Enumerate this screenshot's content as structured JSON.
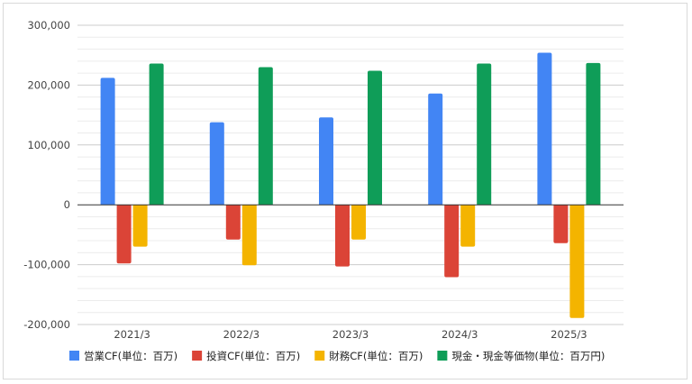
{
  "chart_data": {
    "type": "bar",
    "title": "",
    "xlabel": "",
    "ylabel": "",
    "categories": [
      "2021/3",
      "2022/3",
      "2023/3",
      "2024/3",
      "2025/3"
    ],
    "ylim": [
      -200000,
      300000
    ],
    "y_ticks": [
      "300,000",
      "200,000",
      "100,000",
      "0",
      "-100,000",
      "-200,000"
    ],
    "y_tick_values": [
      300000,
      200000,
      100000,
      0,
      -100000,
      -200000
    ],
    "grid": true,
    "legend_position": "bottom",
    "series": [
      {
        "name": "営業CF(単位：百万)",
        "color": "#4285f4",
        "values": [
          212000,
          138000,
          146000,
          186000,
          254000
        ]
      },
      {
        "name": "投資CF(単位：百万)",
        "color": "#db4437",
        "values": [
          -98000,
          -58000,
          -103000,
          -121000,
          -64000
        ]
      },
      {
        "name": "財務CF(単位：百万)",
        "color": "#f4b400",
        "values": [
          -70000,
          -101000,
          -58000,
          -70000,
          -189000
        ]
      },
      {
        "name": "現金・現金等価物(単位：百万円)",
        "color": "#0f9d58",
        "values": [
          236000,
          230000,
          224000,
          236000,
          237000
        ]
      }
    ]
  }
}
